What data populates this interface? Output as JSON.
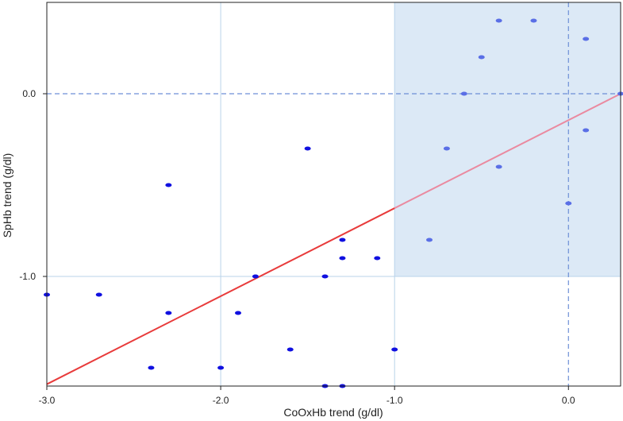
{
  "chart_data": {
    "type": "scatter",
    "xlabel": "CoOxHb trend (g/dl)",
    "ylabel": "SpHb trend (g/dl)",
    "xlim": [
      -3.0,
      0.3
    ],
    "ylim": [
      -1.6,
      0.5
    ],
    "x_ticks": [
      -3.0,
      -2.0,
      -1.0,
      0.0
    ],
    "x_tick_labels": [
      "-3.0",
      "-2.0",
      "-1.0",
      "0.0"
    ],
    "y_ticks": [
      -1.0,
      0.0
    ],
    "y_tick_labels": [
      "-1.0",
      "0.0"
    ],
    "grid": "vertical gridlines at -2.0 and -1.0; horizontal gridline at -1.0",
    "reference_lines": [
      {
        "orientation": "horizontal",
        "value": 0.0,
        "style": "dashed"
      },
      {
        "orientation": "vertical",
        "value": 0.0,
        "style": "dashed"
      }
    ],
    "shaded_region": {
      "x": [
        -1.0,
        0.3
      ],
      "y": [
        -1.0,
        0.5
      ],
      "color": "#dce9f6"
    },
    "regression_line": {
      "x": [
        -3.0,
        0.3
      ],
      "y": [
        -1.59,
        0.0
      ],
      "color": "#e83b3b"
    },
    "point_color": "#1010e0",
    "points": [
      {
        "x": -3.0,
        "y": -1.1
      },
      {
        "x": -2.7,
        "y": -1.1
      },
      {
        "x": -2.4,
        "y": -1.5
      },
      {
        "x": -2.3,
        "y": -0.5
      },
      {
        "x": -2.3,
        "y": -1.2
      },
      {
        "x": -2.0,
        "y": -1.5
      },
      {
        "x": -1.9,
        "y": -1.2
      },
      {
        "x": -1.8,
        "y": -1.0
      },
      {
        "x": -1.6,
        "y": -1.4
      },
      {
        "x": -1.5,
        "y": -0.3
      },
      {
        "x": -1.4,
        "y": -1.0
      },
      {
        "x": -1.4,
        "y": -1.6
      },
      {
        "x": -1.3,
        "y": -0.8
      },
      {
        "x": -1.3,
        "y": -0.9
      },
      {
        "x": -1.3,
        "y": -1.6
      },
      {
        "x": -1.1,
        "y": -0.9
      },
      {
        "x": -1.0,
        "y": -1.4
      },
      {
        "x": -0.8,
        "y": -0.8
      },
      {
        "x": -0.7,
        "y": -0.3
      },
      {
        "x": -0.6,
        "y": 0.0
      },
      {
        "x": -0.5,
        "y": 0.2
      },
      {
        "x": -0.4,
        "y": 0.4
      },
      {
        "x": -0.4,
        "y": -0.4
      },
      {
        "x": -0.2,
        "y": 0.4
      },
      {
        "x": 0.0,
        "y": -0.6
      },
      {
        "x": 0.1,
        "y": 0.3
      },
      {
        "x": 0.1,
        "y": -0.2
      },
      {
        "x": 0.3,
        "y": 0.0
      }
    ]
  }
}
